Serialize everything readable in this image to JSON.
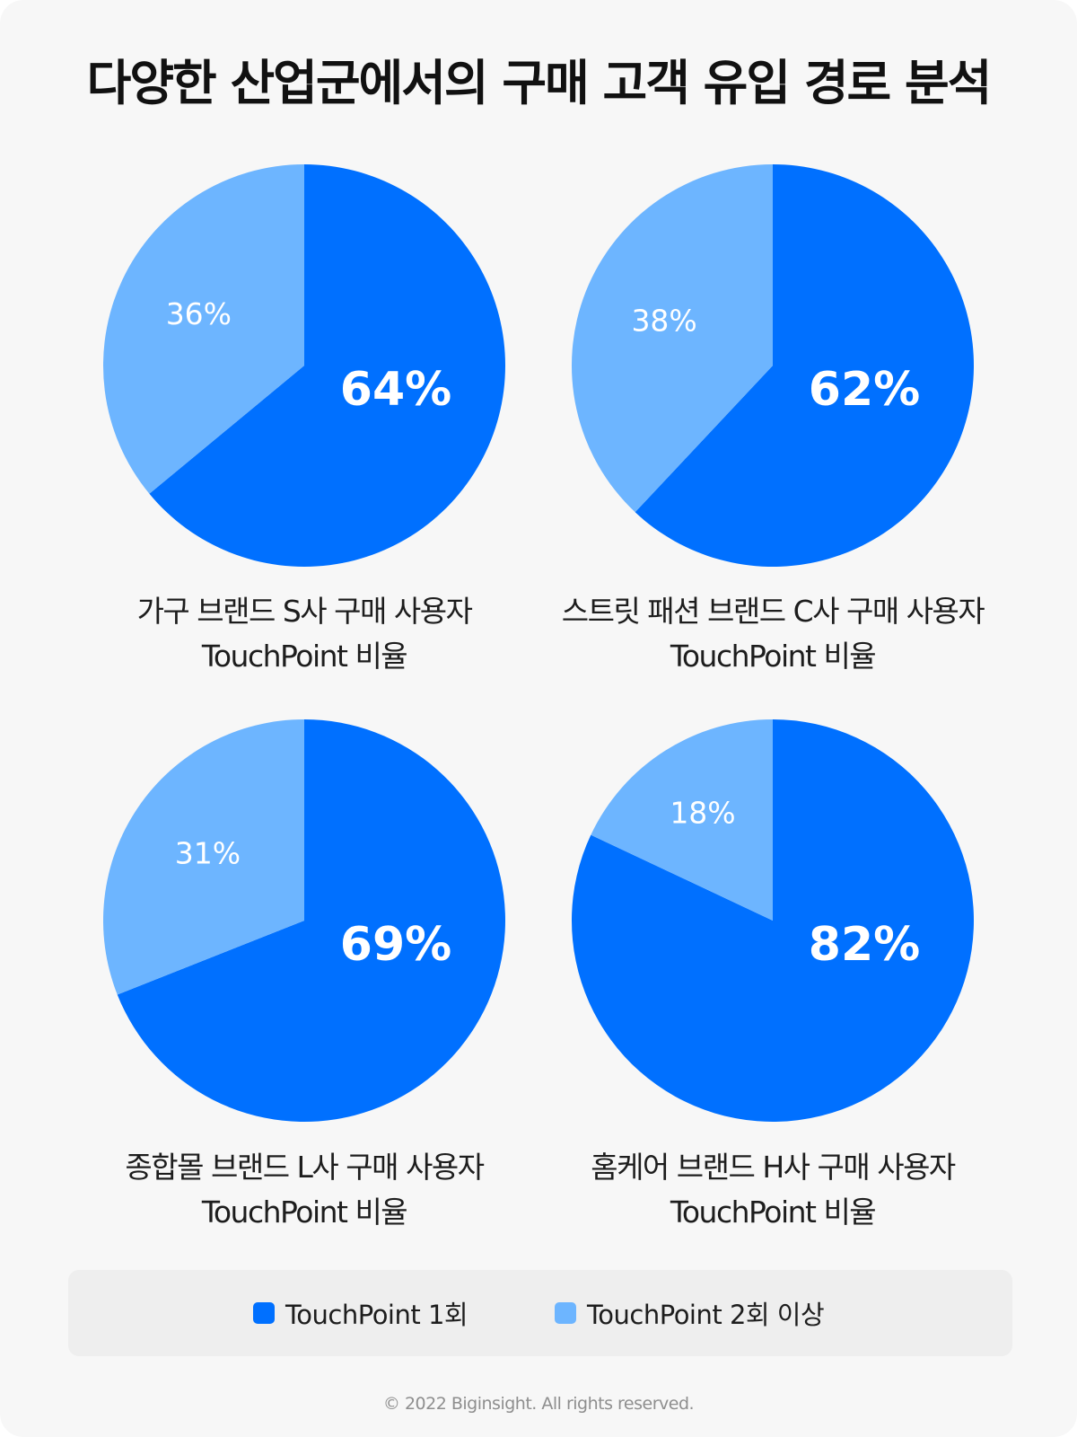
{
  "title": "다양한 산업군에서의 구매 고객 유입 경로 분석",
  "colors": {
    "touchpoint_1": "#0070ff",
    "touchpoint_2plus": "#6db5ff"
  },
  "legend": [
    {
      "label": "TouchPoint 1회",
      "color": "#0070ff"
    },
    {
      "label": "TouchPoint 2회 이상",
      "color": "#6db5ff"
    }
  ],
  "footer": "© 2022 Biginsight. All rights reserved.",
  "chart_data": [
    {
      "type": "pie",
      "title_line1": "가구 브랜드 S사 구매 사용자",
      "title_line2": "TouchPoint 비율",
      "slices": [
        {
          "name": "TouchPoint 1회",
          "value": 64,
          "label": "64%"
        },
        {
          "name": "TouchPoint 2회 이상",
          "value": 36,
          "label": "36%"
        }
      ]
    },
    {
      "type": "pie",
      "title_line1": "스트릿 패션 브랜드 C사 구매 사용자",
      "title_line2": "TouchPoint 비율",
      "slices": [
        {
          "name": "TouchPoint 1회",
          "value": 62,
          "label": "62%"
        },
        {
          "name": "TouchPoint 2회 이상",
          "value": 38,
          "label": "38%"
        }
      ]
    },
    {
      "type": "pie",
      "title_line1": "종합몰 브랜드 L사 구매 사용자",
      "title_line2": "TouchPoint 비율",
      "slices": [
        {
          "name": "TouchPoint 1회",
          "value": 69,
          "label": "69%"
        },
        {
          "name": "TouchPoint 2회 이상",
          "value": 31,
          "label": "31%"
        }
      ]
    },
    {
      "type": "pie",
      "title_line1": "홈케어 브랜드 H사 구매 사용자",
      "title_line2": "TouchPoint 비율",
      "slices": [
        {
          "name": "TouchPoint 1회",
          "value": 82,
          "label": "82%"
        },
        {
          "name": "TouchPoint 2회 이상",
          "value": 18,
          "label": "18%"
        }
      ]
    }
  ]
}
